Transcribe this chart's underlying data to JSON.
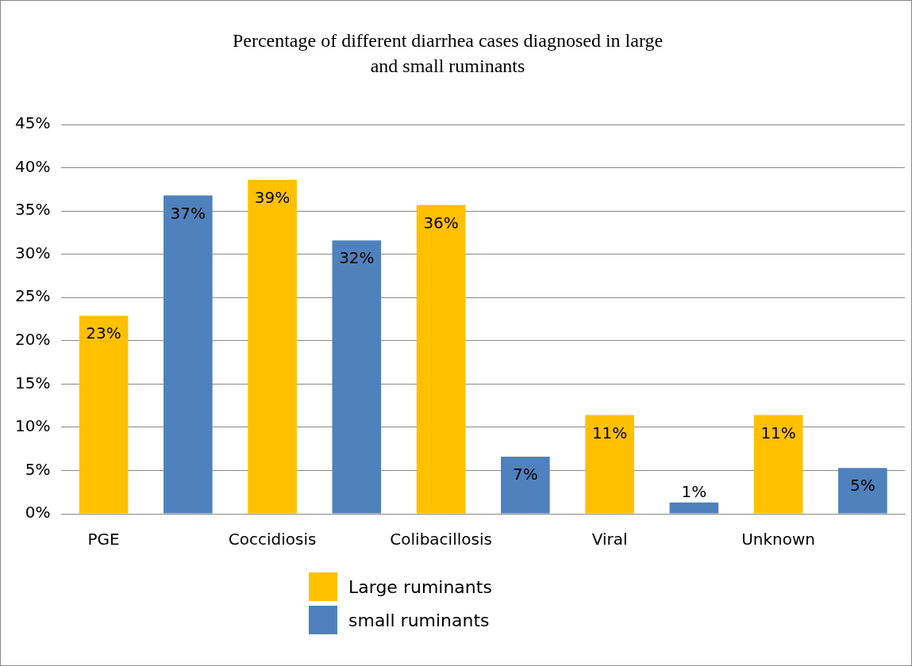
{
  "chart_data": {
    "type": "bar",
    "title": "Percentage of different diarrhea cases diagnosed in large\nand small ruminants",
    "categories": [
      "PGE",
      null,
      "Coccidiosis",
      null,
      "Colibacillosis",
      null,
      "Viral",
      null,
      "Unknown",
      null
    ],
    "series": [
      {
        "name": "Large ruminants",
        "color": "#ffc000",
        "values": [
          22.9,
          null,
          38.6,
          null,
          35.7,
          null,
          11.4,
          null,
          11.4,
          null
        ],
        "value_labels": [
          "23%",
          null,
          "39%",
          null,
          "36%",
          null,
          "11%",
          null,
          "11%",
          null
        ]
      },
      {
        "name": "small ruminants",
        "color": "#4f81bd",
        "values": [
          null,
          36.8,
          null,
          31.6,
          null,
          6.6,
          null,
          1.3,
          null,
          5.3
        ],
        "value_labels": [
          null,
          "37%",
          null,
          "32%",
          null,
          "7%",
          null,
          "1%",
          null,
          "5%"
        ]
      }
    ],
    "ylim": [
      0,
      45
    ],
    "yticks": [
      {
        "value": 0,
        "label": "0%"
      },
      {
        "value": 5,
        "label": "5%"
      },
      {
        "value": 10,
        "label": "10%"
      },
      {
        "value": 15,
        "label": "15%"
      },
      {
        "value": 20,
        "label": "20%"
      },
      {
        "value": 25,
        "label": "25%"
      },
      {
        "value": 30,
        "label": "30%"
      },
      {
        "value": 35,
        "label": "35%"
      },
      {
        "value": 40,
        "label": "40%"
      },
      {
        "value": 45,
        "label": "45%"
      }
    ],
    "grid": "y",
    "legend": "bottom"
  }
}
